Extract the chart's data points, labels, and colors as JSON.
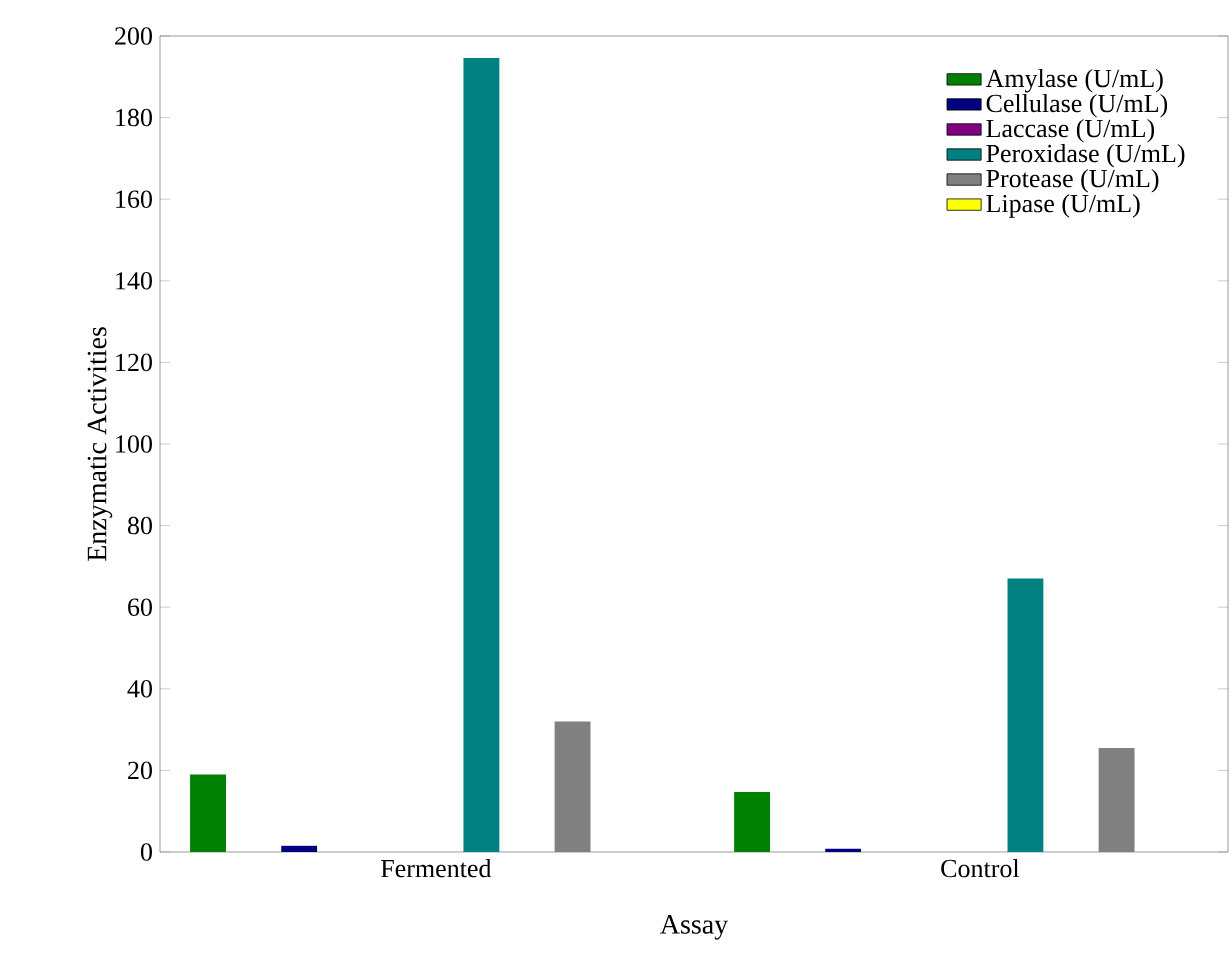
{
  "chart_data": {
    "type": "bar",
    "xlabel": "Assay",
    "ylabel": "Enzymatic Activities",
    "categories": [
      "Fermented",
      "Control"
    ],
    "series": [
      {
        "name": "Amylase (U/mL)",
        "color": "#008000",
        "values": [
          19,
          14.7
        ]
      },
      {
        "name": "Cellulase (U/mL)",
        "color": "#000080",
        "values": [
          1.5,
          0.8
        ]
      },
      {
        "name": "Laccase (U/mL)",
        "color": "#800080",
        "values": [
          0,
          0
        ]
      },
      {
        "name": "Peroxidase (U/mL)",
        "color": "#008080",
        "values": [
          194.6,
          67
        ]
      },
      {
        "name": "Protease (U/mL)",
        "color": "#808080",
        "values": [
          32,
          25.5
        ]
      },
      {
        "name": "Lipase (U/mL)",
        "color": "#ffff00",
        "values": [
          0,
          0
        ]
      }
    ],
    "ylim": [
      0,
      200
    ],
    "yticks": [
      0,
      20,
      40,
      60,
      80,
      100,
      120,
      140,
      160,
      180,
      200
    ],
    "legend": "top right"
  }
}
